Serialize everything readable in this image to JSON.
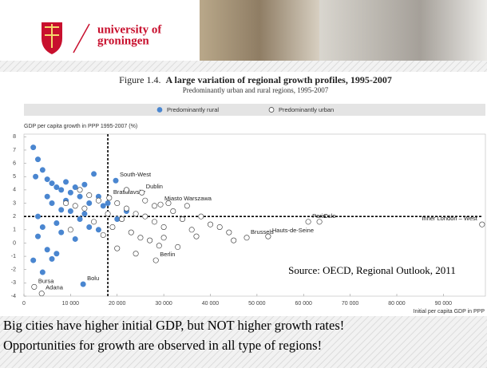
{
  "header": {
    "logo_line1": "university of",
    "logo_line2": "groningen"
  },
  "chart_data": {
    "type": "scatter",
    "figure_number": "Figure 1.4.",
    "title": "A large variation of regional growth profiles, 1995-2007",
    "subtitle": "Predominantly urban and rural regions, 1995-2007",
    "y_label": "GDP per capita growth in PPP 1995-2007 (%)",
    "x_label": "Initial per capita GDP in PPP",
    "source": "Source: OECD, Regional Outlook, 2011",
    "xlim": [
      0,
      98500
    ],
    "ylim": [
      -4,
      8.2
    ],
    "xticks": [
      0,
      {
        "value": 10000,
        "label": "10 000"
      },
      {
        "value": 20000,
        "label": "20 000"
      },
      {
        "value": 30000,
        "label": "30 000"
      },
      {
        "value": 40000,
        "label": "40 000"
      },
      {
        "value": 50000,
        "label": "50 000"
      },
      {
        "value": 60000,
        "label": "60 000"
      },
      {
        "value": 70000,
        "label": "70 000"
      },
      {
        "value": 80000,
        "label": "80 000"
      },
      {
        "value": 90000,
        "label": "90 000"
      }
    ],
    "yticks": [
      -4,
      -3,
      -2,
      -1,
      0,
      1,
      2,
      3,
      4,
      5,
      6,
      7,
      8
    ],
    "reference_lines": {
      "x": 18000,
      "y": 2
    },
    "series": [
      {
        "name": "Predominantly rural",
        "color": "#4a86d0",
        "marker": "filled",
        "x": [
          2000,
          3000,
          2500,
          4000,
          5000,
          6000,
          7000,
          8000,
          9000,
          10000,
          11000,
          12000,
          13000,
          14000,
          15000,
          16000,
          17000,
          5000,
          6000,
          8000,
          9000,
          3000,
          4000,
          7000,
          10000,
          12000,
          14000,
          3000,
          5000,
          6000,
          2000,
          8000,
          11000,
          13000,
          16000,
          20000,
          22000,
          18000,
          19700,
          12700,
          4000,
          7000
        ],
        "values": [
          7.2,
          6.3,
          5,
          5.5,
          4.8,
          4.5,
          4.2,
          4,
          4.6,
          3.8,
          4.2,
          3.5,
          4.4,
          3,
          5.2,
          3.5,
          2.8,
          3.5,
          3,
          2.5,
          3.2,
          2,
          1.2,
          1.5,
          2.4,
          1.8,
          1.2,
          0.5,
          -0.5,
          -1.2,
          -1.3,
          0.8,
          0.3,
          2.2,
          1,
          1.8,
          2.4,
          3,
          4.7,
          -3.1,
          -2.2,
          -0.8
        ],
        "labels": [
          null,
          null,
          null,
          null,
          null,
          null,
          null,
          null,
          null,
          null,
          null,
          null,
          null,
          null,
          null,
          null,
          null,
          null,
          null,
          null,
          null,
          null,
          null,
          null,
          null,
          null,
          null,
          null,
          null,
          null,
          null,
          null,
          null,
          null,
          null,
          null,
          null,
          null,
          "South-West",
          "Bolu",
          null,
          null
        ]
      },
      {
        "name": "Predominantly urban",
        "color": "#ffffff",
        "marker": "open",
        "x": [
          18300,
          25300,
          29300,
          52400,
          98300,
          61000,
          63400,
          47800,
          28300,
          2200,
          3800,
          12000,
          14000,
          16000,
          20000,
          22000,
          24000,
          26000,
          28000,
          30000,
          32000,
          34000,
          36000,
          38000,
          40000,
          21000,
          23000,
          25000,
          27000,
          19000,
          17000,
          15000,
          13000,
          11000,
          20000,
          24000,
          30000,
          33000,
          35000,
          42000,
          44000,
          26000,
          31000,
          18000,
          22000,
          28000,
          37000,
          9000,
          10000,
          45000,
          29000
        ],
        "values": [
          3.4,
          3.8,
          2.9,
          0.5,
          1.4,
          1.6,
          1.6,
          0.4,
          -1.3,
          -3.3,
          -3.8,
          4,
          3.6,
          3.2,
          3,
          2.6,
          2.2,
          2,
          1.6,
          1.2,
          2.4,
          1.8,
          1,
          2,
          1.4,
          1.8,
          0.8,
          0.4,
          0.2,
          1.2,
          0.6,
          1.6,
          2.6,
          2.8,
          -0.4,
          -0.8,
          0.4,
          -0.3,
          2.8,
          1.2,
          0.8,
          3.2,
          3,
          2.2,
          4,
          2.8,
          0.5,
          3,
          1,
          0.2,
          -0.2
        ],
        "labels": [
          "Bratislavsky",
          "Dublin",
          "Miasto Warszawa",
          "Hauts-de-Seine",
          "Inner London – West",
          "Paris",
          "Oslo",
          "Brussels",
          "Berlin",
          "Bursa",
          "Adana",
          null,
          null,
          null,
          null,
          null,
          null,
          null,
          null,
          null,
          null,
          null,
          null,
          null,
          null,
          null,
          null,
          null,
          null,
          null,
          null,
          null,
          null,
          null,
          null,
          null,
          null,
          null,
          null,
          null,
          null,
          null,
          null,
          null,
          null,
          null,
          null,
          null,
          null,
          null,
          null
        ]
      }
    ]
  },
  "bullets": [
    "Big cities have higher initial GDP, but NOT higher growth rates!",
    "Opportunities for growth are observed in all type of regions!"
  ]
}
